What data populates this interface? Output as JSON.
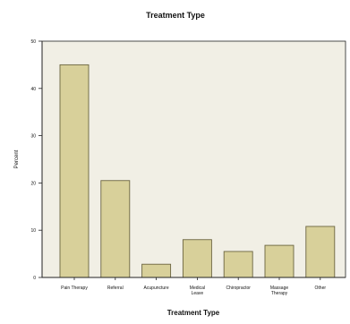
{
  "chart_data": {
    "type": "bar",
    "title": "Treatment Type",
    "xlabel": "Treatment Type",
    "ylabel": "Percent",
    "categories": [
      "Pain Therapy",
      "Referral",
      "Acupuncture",
      "Medical Leave",
      "Chiropractor",
      "Massage Therapy",
      "Other"
    ],
    "values": [
      45,
      20.5,
      2.8,
      8,
      5.5,
      6.8,
      10.8
    ],
    "ylim": [
      0,
      50
    ],
    "yticks": [
      0,
      10,
      20,
      30,
      40,
      50
    ],
    "grid": false,
    "legend": "none",
    "colors": {
      "plot_background": "#f1efe5",
      "bar_fill": "#d8d09a",
      "bar_stroke": "#6b6440",
      "axis": "#222222",
      "text": "#111111"
    }
  }
}
